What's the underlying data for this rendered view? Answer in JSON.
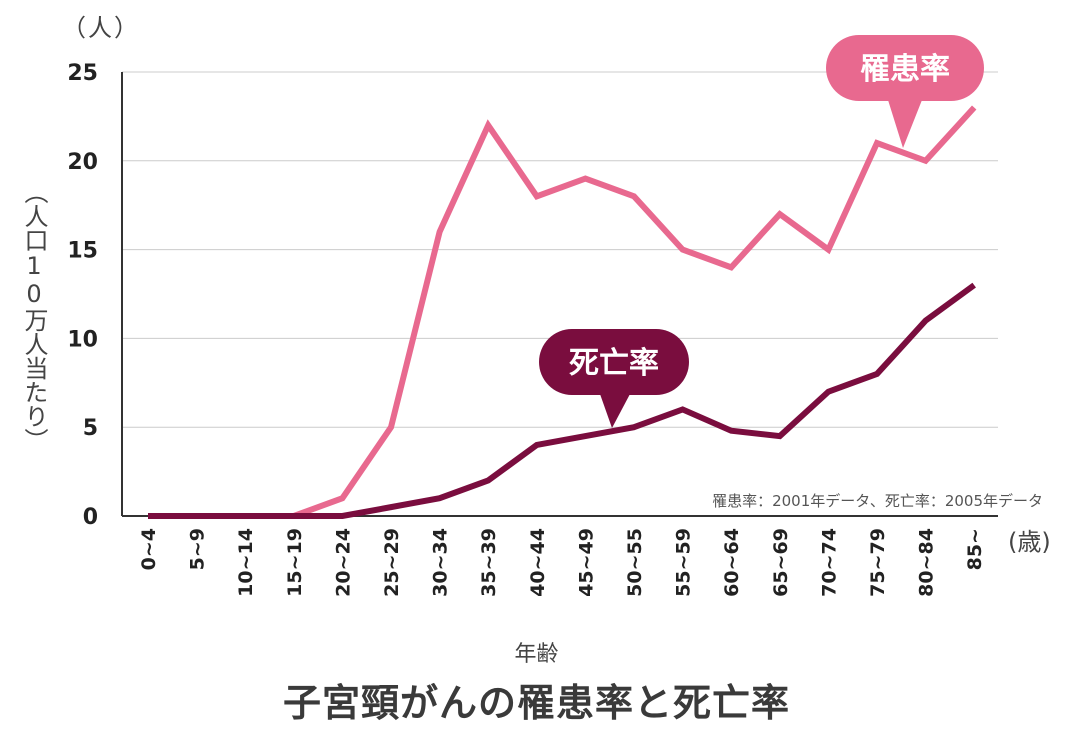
{
  "chart_data": {
    "type": "line",
    "title": "子宮頸がんの罹患率と死亡率",
    "xlabel": "年齢",
    "ylabel": "（人口10万人当たり）",
    "y_unit": "（人）",
    "x_unit": "(歳)",
    "ylim": [
      0,
      25
    ],
    "yticks": [
      0,
      5,
      10,
      15,
      20,
      25
    ],
    "grid": true,
    "categories": [
      "0~4",
      "5~9",
      "10~14",
      "15~19",
      "20~24",
      "25~29",
      "30~34",
      "35~39",
      "40~44",
      "45~49",
      "50~55",
      "55~59",
      "60~64",
      "65~69",
      "70~74",
      "75~79",
      "80~84",
      "85~"
    ],
    "series": [
      {
        "name": "罹患率",
        "color": "#e8698f",
        "values": [
          0,
          0,
          0,
          0,
          1,
          5,
          16,
          22,
          18,
          19,
          18,
          15,
          14,
          17,
          15,
          21,
          20,
          23
        ]
      },
      {
        "name": "死亡率",
        "color": "#7a0d3e",
        "values": [
          0,
          0,
          0,
          0,
          0,
          0.5,
          1,
          2,
          4,
          4.5,
          5,
          6,
          4.8,
          4.5,
          7,
          8,
          11,
          13
        ]
      }
    ],
    "annotation": "罹患率：2001年データ、死亡率：2005年データ"
  },
  "colors": {
    "grid": "#cccccc",
    "axis": "#333333",
    "incidence": "#e8698f",
    "mortality": "#7a0d3e"
  }
}
